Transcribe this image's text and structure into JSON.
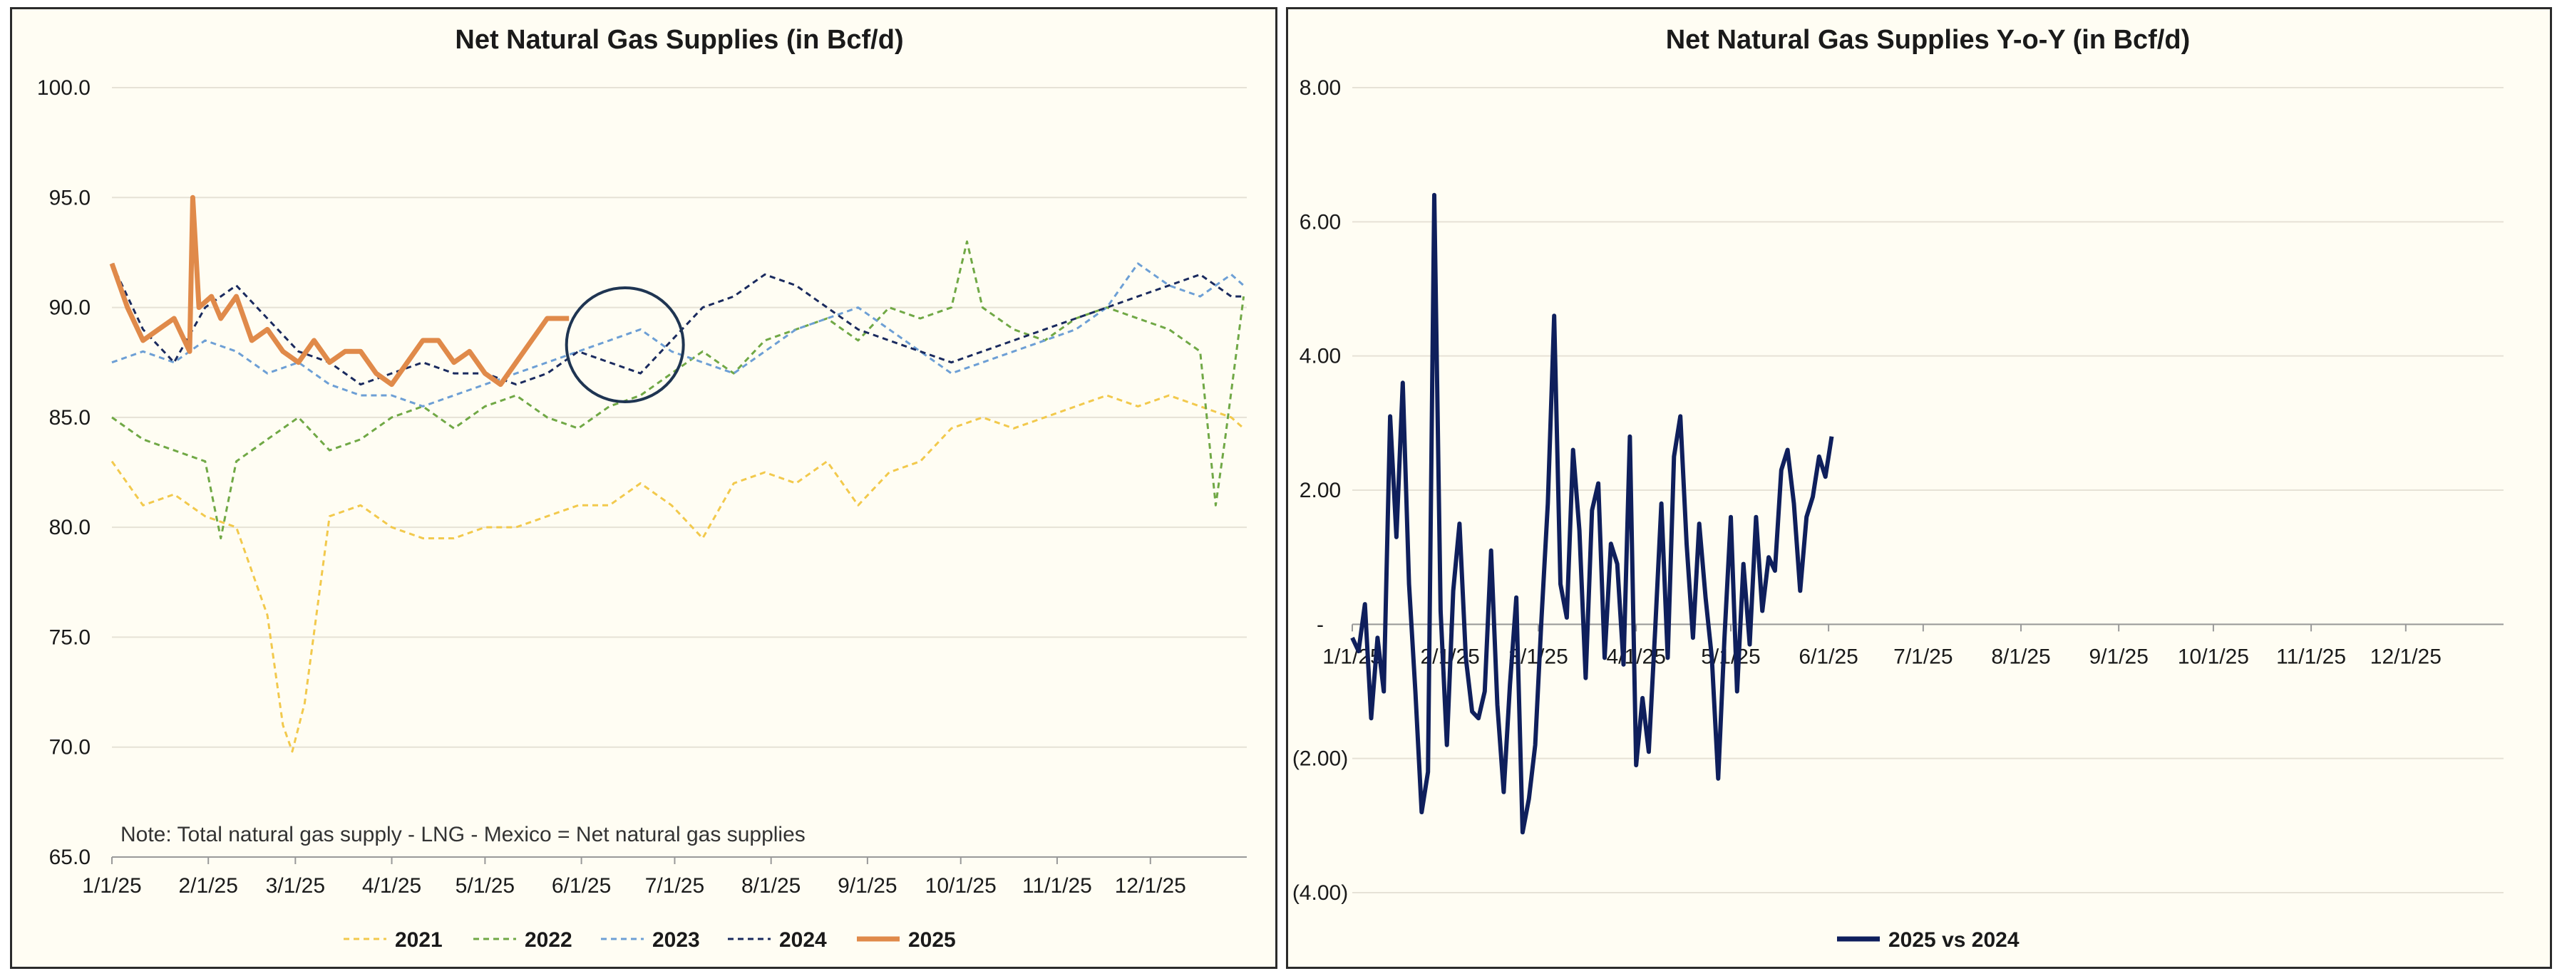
{
  "chart_data": [
    {
      "type": "line",
      "title": "Net Natural Gas Supplies (in Bcf/d)",
      "ylim": [
        65,
        100
      ],
      "yticks": [
        "100.0",
        "95.0",
        "90.0",
        "85.0",
        "80.0",
        "75.0",
        "70.0",
        "65.0"
      ],
      "ytick_values": [
        100,
        95,
        90,
        85,
        80,
        75,
        70,
        65
      ],
      "xtick_labels": [
        "1/1/25",
        "2/1/25",
        "3/1/25",
        "4/1/25",
        "5/1/25",
        "6/1/25",
        "7/1/25",
        "8/1/25",
        "9/1/25",
        "10/1/25",
        "11/1/25",
        "12/1/25"
      ],
      "x_range_days": [
        0,
        365
      ],
      "grid": "horizontal",
      "legend_position": "bottom",
      "annotation": "Note: Total natural gas supply - LNG - Mexico = Net natural gas supplies",
      "circle_annotation": {
        "x_day": 165,
        "y": 88.3
      },
      "series": [
        {
          "name": "2021",
          "color": "#f2c94c",
          "style": "dashed",
          "x": [
            0,
            10,
            20,
            30,
            40,
            50,
            55,
            58,
            62,
            70,
            80,
            90,
            100,
            110,
            120,
            130,
            140,
            150,
            160,
            170,
            180,
            190,
            200,
            210,
            220,
            230,
            240,
            250,
            260,
            270,
            280,
            290,
            300,
            310,
            320,
            330,
            340,
            350,
            360,
            364
          ],
          "values": [
            83,
            81,
            81.5,
            80.5,
            80,
            76,
            71,
            69.8,
            72,
            80.5,
            81,
            80,
            79.5,
            79.5,
            80,
            80,
            80.5,
            81,
            81,
            82,
            81,
            79.5,
            82,
            82.5,
            82,
            83,
            81,
            82.5,
            83,
            84.5,
            85,
            84.5,
            85,
            85.5,
            86,
            85.5,
            86,
            85.5,
            85,
            84.5
          ]
        },
        {
          "name": "2022",
          "color": "#70a845",
          "style": "dashed",
          "x": [
            0,
            10,
            20,
            30,
            35,
            40,
            50,
            60,
            70,
            80,
            90,
            100,
            110,
            120,
            130,
            140,
            150,
            160,
            170,
            180,
            190,
            200,
            210,
            220,
            230,
            240,
            250,
            260,
            270,
            275,
            280,
            290,
            300,
            310,
            320,
            330,
            340,
            350,
            355,
            358,
            364
          ],
          "values": [
            85,
            84,
            83.5,
            83,
            79.5,
            83,
            84,
            85,
            83.5,
            84,
            85,
            85.5,
            84.5,
            85.5,
            86,
            85,
            84.5,
            85.5,
            86,
            87,
            88,
            87,
            88.5,
            89,
            89.5,
            88.5,
            90,
            89.5,
            90,
            93,
            90,
            89,
            88.5,
            89.5,
            90,
            89.5,
            89,
            88,
            81,
            84,
            90.5
          ]
        },
        {
          "name": "2023",
          "color": "#6d9fd5",
          "style": "dashed",
          "x": [
            0,
            10,
            20,
            30,
            40,
            50,
            60,
            70,
            80,
            90,
            100,
            110,
            120,
            130,
            140,
            150,
            160,
            170,
            180,
            190,
            200,
            210,
            220,
            230,
            240,
            250,
            260,
            270,
            280,
            290,
            300,
            310,
            320,
            330,
            340,
            350,
            360,
            364
          ],
          "values": [
            87.5,
            88,
            87.5,
            88.5,
            88,
            87,
            87.5,
            86.5,
            86,
            86,
            85.5,
            86,
            86.5,
            87,
            87.5,
            88,
            88.5,
            89,
            88,
            87.5,
            87,
            88,
            89,
            89.5,
            90,
            89,
            88,
            87,
            87.5,
            88,
            88.5,
            89,
            90,
            92,
            91,
            90.5,
            91.5,
            91
          ]
        },
        {
          "name": "2024",
          "color": "#1a2a5e",
          "style": "dashed",
          "x": [
            0,
            10,
            20,
            30,
            40,
            50,
            60,
            70,
            80,
            90,
            100,
            110,
            120,
            130,
            140,
            150,
            160,
            170,
            180,
            190,
            200,
            210,
            220,
            230,
            240,
            250,
            260,
            270,
            280,
            290,
            300,
            310,
            320,
            330,
            340,
            350,
            360,
            364
          ],
          "values": [
            92,
            89,
            87.5,
            90,
            91,
            89.5,
            88,
            87.5,
            86.5,
            87,
            87.5,
            87,
            87,
            86.5,
            87,
            88,
            87.5,
            87,
            88.5,
            90,
            90.5,
            91.5,
            91,
            90,
            89,
            88.5,
            88,
            87.5,
            88,
            88.5,
            89,
            89.5,
            90,
            90.5,
            91,
            91.5,
            90.5,
            90.5
          ]
        },
        {
          "name": "2025",
          "color": "#e08a4a",
          "style": "solid",
          "x": [
            0,
            5,
            10,
            15,
            20,
            25,
            26,
            28,
            32,
            35,
            40,
            45,
            50,
            55,
            60,
            65,
            70,
            75,
            80,
            85,
            90,
            95,
            100,
            105,
            110,
            115,
            120,
            125,
            130,
            135,
            140,
            145,
            147
          ],
          "values": [
            92,
            90,
            88.5,
            89,
            89.5,
            88,
            95,
            90,
            90.5,
            89.5,
            90.5,
            88.5,
            89,
            88,
            87.5,
            88.5,
            87.5,
            88,
            88,
            87,
            86.5,
            87.5,
            88.5,
            88.5,
            87.5,
            88,
            87,
            86.5,
            87.5,
            88.5,
            89.5,
            89.5,
            89.5
          ]
        }
      ]
    },
    {
      "type": "line",
      "title": "Net Natural Gas Supplies Y-o-Y (in Bcf/d)",
      "ylim": [
        -4,
        8
      ],
      "yticks": [
        "8.00",
        "6.00",
        "4.00",
        "2.00",
        "-",
        "(2.00)",
        "(4.00)"
      ],
      "ytick_values": [
        8,
        6,
        4,
        2,
        0,
        -2,
        -4
      ],
      "xtick_labels": [
        "1/1/25",
        "2/1/25",
        "3/1/25",
        "4/1/25",
        "5/1/25",
        "6/1/25",
        "7/1/25",
        "8/1/25",
        "9/1/25",
        "10/1/25",
        "11/1/25",
        "12/1/25"
      ],
      "x_range_days": [
        0,
        365
      ],
      "grid": "horizontal",
      "legend_position": "bottom",
      "series": [
        {
          "name": "2025 vs 2024",
          "color": "#0f1f5c",
          "style": "solid",
          "x": [
            0,
            2,
            4,
            6,
            8,
            10,
            12,
            14,
            16,
            18,
            20,
            22,
            24,
            26,
            28,
            30,
            32,
            34,
            36,
            38,
            40,
            42,
            44,
            46,
            48,
            50,
            52,
            54,
            56,
            58,
            60,
            62,
            64,
            66,
            68,
            70,
            72,
            74,
            76,
            78,
            80,
            82,
            84,
            86,
            88,
            90,
            92,
            94,
            96,
            98,
            100,
            102,
            104,
            106,
            108,
            110,
            112,
            114,
            116,
            118,
            120,
            122,
            124,
            126,
            128,
            130,
            132,
            134,
            136,
            138,
            140,
            142,
            144,
            146,
            148,
            150,
            152
          ],
          "values": [
            -0.2,
            -0.4,
            0.3,
            -1.4,
            -0.2,
            -1.0,
            3.1,
            1.3,
            3.6,
            0.6,
            -1.0,
            -2.8,
            -2.2,
            6.4,
            0.2,
            -1.8,
            0.5,
            1.5,
            -0.5,
            -1.3,
            -1.4,
            -1.0,
            1.1,
            -1.2,
            -2.5,
            -0.9,
            0.4,
            -3.1,
            -2.6,
            -1.8,
            0.1,
            1.8,
            4.6,
            0.6,
            0.1,
            2.6,
            1.4,
            -0.8,
            1.7,
            2.1,
            -0.5,
            1.2,
            0.9,
            -0.6,
            2.8,
            -2.1,
            -1.1,
            -1.9,
            -0.1,
            1.8,
            -0.5,
            2.5,
            3.1,
            1.2,
            -0.2,
            1.5,
            0.4,
            -0.5,
            -2.3,
            -0.2,
            1.6,
            -1.0,
            0.9,
            -0.3,
            1.6,
            0.2,
            1.0,
            0.8,
            2.3,
            2.6,
            1.8,
            0.5,
            1.6,
            1.9,
            2.5,
            2.2,
            2.8
          ]
        }
      ]
    }
  ]
}
